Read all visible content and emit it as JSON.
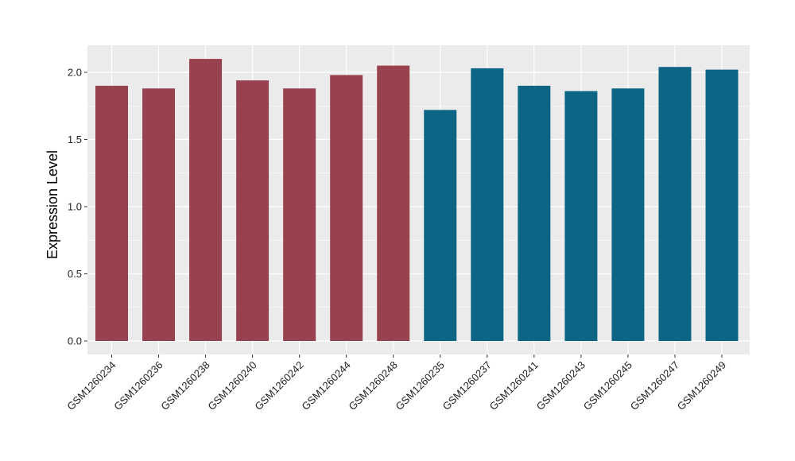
{
  "chart_data": {
    "type": "bar",
    "title": "",
    "xlabel": "",
    "ylabel": "Expression Level",
    "ylim": [
      0,
      2.2
    ],
    "yticks": [
      "0.0",
      "0.5",
      "1.0",
      "1.5",
      "2.0"
    ],
    "grid": true,
    "categories": [
      "GSM1260234",
      "GSM1260236",
      "GSM1260238",
      "GSM1260240",
      "GSM1260242",
      "GSM1260244",
      "GSM1260248",
      "GSM1260235",
      "GSM1260237",
      "GSM1260241",
      "GSM1260243",
      "GSM1260245",
      "GSM1260247",
      "GSM1260249"
    ],
    "values": [
      1.9,
      1.88,
      2.1,
      1.94,
      1.88,
      1.98,
      2.05,
      1.72,
      2.03,
      1.9,
      1.86,
      1.88,
      2.04,
      2.02
    ],
    "groups": [
      0,
      0,
      0,
      0,
      0,
      0,
      0,
      1,
      1,
      1,
      1,
      1,
      1,
      1
    ],
    "group_colors": [
      "#99424f",
      "#0d6585"
    ],
    "panel_background": "#ebebeb",
    "gridline_color": "#ffffff"
  }
}
